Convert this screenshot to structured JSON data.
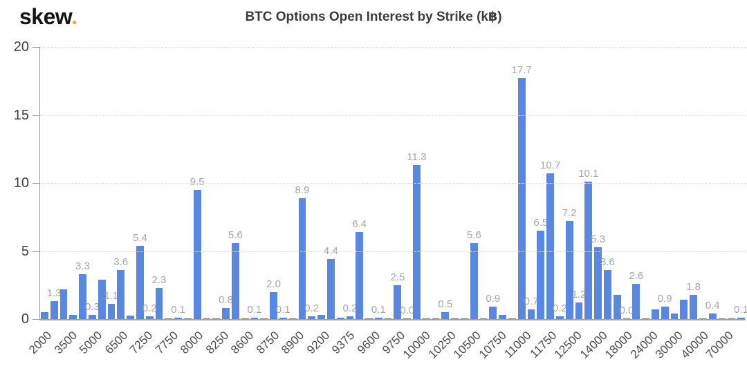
{
  "header": {
    "logo_text": "skew",
    "logo_dot": "."
  },
  "chart_data": {
    "type": "bar",
    "title": "BTC Options Open Interest by Strike (k₿)",
    "xlabel": "",
    "ylabel": "",
    "ylim": [
      0,
      20
    ],
    "y_ticks": [
      0,
      5,
      10,
      15,
      20
    ],
    "grid": "horizontal-dashed",
    "legend_position": "none",
    "bar_color": "#5a87e0",
    "value_label_color": "#a6a6a6",
    "x_labels": [
      "2000",
      "3500",
      "5000",
      "6500",
      "7250",
      "7750",
      "8000",
      "8250",
      "8600",
      "8750",
      "8900",
      "9200",
      "9375",
      "9600",
      "9750",
      "10000",
      "10250",
      "10500",
      "10750",
      "11000",
      "11750",
      "12500",
      "14000",
      "18000",
      "24000",
      "30000",
      "40000",
      "70000"
    ],
    "bars": [
      {
        "v": 0.5
      },
      {
        "v": 1.3,
        "label": "1.3"
      },
      {
        "v": 2.2
      },
      {
        "v": 0.3
      },
      {
        "v": 3.3,
        "label": "3.3"
      },
      {
        "v": 0.3,
        "label": "0.3"
      },
      {
        "v": 2.9
      },
      {
        "v": 1.1,
        "label": "1.1"
      },
      {
        "v": 3.6,
        "label": "3.6"
      },
      {
        "v": 0.25
      },
      {
        "v": 5.4,
        "label": "5.4"
      },
      {
        "v": 0.2,
        "label": "0.2"
      },
      {
        "v": 2.3,
        "label": "2.3"
      },
      {
        "v": 0.05
      },
      {
        "v": 0.1,
        "label": "0.1"
      },
      {
        "v": 0.05
      },
      {
        "v": 9.5,
        "label": "9.5"
      },
      {
        "v": 0.05
      },
      {
        "v": 0.05
      },
      {
        "v": 0.8,
        "label": "0.8"
      },
      {
        "v": 5.6,
        "label": "5.6"
      },
      {
        "v": 0.05
      },
      {
        "v": 0.1,
        "label": "0.1"
      },
      {
        "v": 0.05
      },
      {
        "v": 2.0,
        "label": "2.0"
      },
      {
        "v": 0.1,
        "label": "0.1"
      },
      {
        "v": 0.05
      },
      {
        "v": 8.9,
        "label": "8.9"
      },
      {
        "v": 0.2,
        "label": "0.2"
      },
      {
        "v": 0.3
      },
      {
        "v": 4.4,
        "label": "4.4"
      },
      {
        "v": 0.1
      },
      {
        "v": 0.2,
        "label": "0.2"
      },
      {
        "v": 6.4,
        "label": "6.4"
      },
      {
        "v": 0.05
      },
      {
        "v": 0.1,
        "label": "0.1"
      },
      {
        "v": 0.05
      },
      {
        "v": 2.5,
        "label": "2.5"
      },
      {
        "v": 0.0,
        "label": "0.0"
      },
      {
        "v": 11.3,
        "label": "11.3"
      },
      {
        "v": 0.05
      },
      {
        "v": 0.05
      },
      {
        "v": 0.5,
        "label": "0.5"
      },
      {
        "v": 0.05
      },
      {
        "v": 0.05
      },
      {
        "v": 5.6,
        "label": "5.6"
      },
      {
        "v": 0.05
      },
      {
        "v": 0.9,
        "label": "0.9"
      },
      {
        "v": 0.3
      },
      {
        "v": 0.05
      },
      {
        "v": 17.7,
        "label": "17.7"
      },
      {
        "v": 0.7,
        "label": "0.7"
      },
      {
        "v": 6.5,
        "label": "6.5"
      },
      {
        "v": 10.7,
        "label": "10.7"
      },
      {
        "v": 0.2,
        "label": "0.2"
      },
      {
        "v": 7.2,
        "label": "7.2"
      },
      {
        "v": 1.2,
        "label": "1.2"
      },
      {
        "v": 10.1,
        "label": "10.1"
      },
      {
        "v": 5.3,
        "label": "5.3"
      },
      {
        "v": 3.6,
        "label": "3.6"
      },
      {
        "v": 1.8
      },
      {
        "v": 0.0,
        "label": "0.0"
      },
      {
        "v": 2.6,
        "label": "2.6"
      },
      {
        "v": 0.05
      },
      {
        "v": 0.7
      },
      {
        "v": 0.9,
        "label": "0.9"
      },
      {
        "v": 0.4
      },
      {
        "v": 1.4
      },
      {
        "v": 1.8,
        "label": "1.8"
      },
      {
        "v": 0.05
      },
      {
        "v": 0.4,
        "label": "0.4"
      },
      {
        "v": 0.05
      },
      {
        "v": 0.05
      },
      {
        "v": 0.1,
        "label": "0.1"
      }
    ]
  }
}
